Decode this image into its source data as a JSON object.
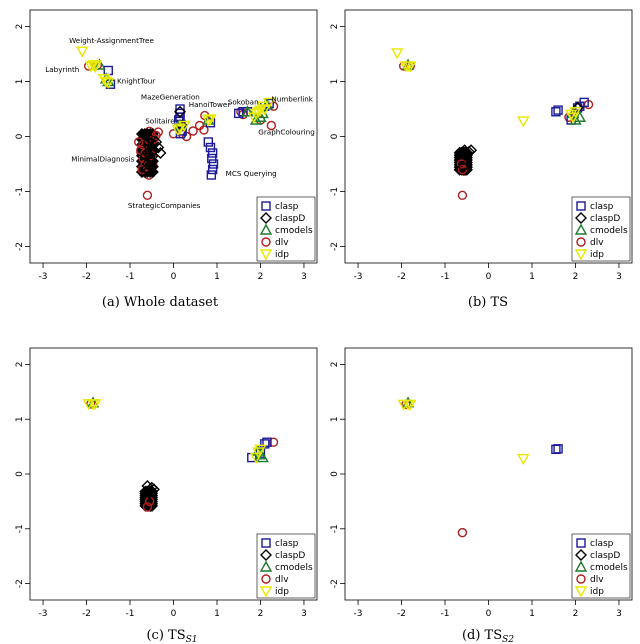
{
  "legend": [
    {
      "name": "clasp",
      "marker": "square",
      "color": "#1a1a9a"
    },
    {
      "name": "claspD",
      "marker": "diamond",
      "color": "#000000"
    },
    {
      "name": "cmodels",
      "marker": "triangle",
      "color": "#1d7a2e"
    },
    {
      "name": "dlv",
      "marker": "circle",
      "color": "#b01e1e"
    },
    {
      "name": "idp",
      "marker": "triangle-down",
      "color": "#e8e800"
    }
  ],
  "chart_data": [
    {
      "type": "scatter",
      "title": "",
      "caption": "(a) Whole dataset",
      "xlim": [
        -3.3,
        3.3
      ],
      "ylim": [
        -2.3,
        2.3
      ],
      "xticks": [
        -3,
        -2,
        -1,
        0,
        1,
        2,
        3
      ],
      "yticks": [
        -2,
        -1,
        0,
        1,
        2
      ],
      "annotations": [
        {
          "text": "Weight-AssignmentTree",
          "x": -2.4,
          "y": 1.7
        },
        {
          "text": "Labyrinth",
          "x": -2.95,
          "y": 1.17
        },
        {
          "text": "KnightTour",
          "x": -1.3,
          "y": 0.96
        },
        {
          "text": "MazeGeneration",
          "x": -0.75,
          "y": 0.67
        },
        {
          "text": "HanoiTower",
          "x": 0.35,
          "y": 0.54
        },
        {
          "text": "Sokoban",
          "x": 1.25,
          "y": 0.58
        },
        {
          "text": "Numberlink",
          "x": 2.25,
          "y": 0.64
        },
        {
          "text": "Solitaire",
          "x": -0.65,
          "y": 0.24
        },
        {
          "text": "GraphColouring",
          "x": 1.95,
          "y": 0.04
        },
        {
          "text": "MinimalDiagnosis",
          "x": -2.35,
          "y": -0.45
        },
        {
          "text": "MCS Querying",
          "x": 1.2,
          "y": -0.72
        },
        {
          "text": "StrategicCompanies",
          "x": -1.05,
          "y": -1.3
        }
      ],
      "series": [
        {
          "name": "idp",
          "points": [
            [
              -2.1,
              1.55
            ],
            [
              -1.9,
              1.28
            ],
            [
              -1.85,
              1.3
            ],
            [
              -1.8,
              1.27
            ],
            [
              -1.78,
              1.3
            ],
            [
              -1.6,
              1.05
            ],
            [
              -1.55,
              1.0
            ],
            [
              -1.5,
              0.98
            ],
            [
              0.8,
              0.3
            ],
            [
              0.85,
              0.32
            ],
            [
              0.15,
              0.15
            ],
            [
              0.25,
              0.2
            ],
            [
              0.1,
              0.12
            ],
            [
              1.85,
              0.35
            ],
            [
              1.95,
              0.45
            ],
            [
              2.1,
              0.5
            ],
            [
              2.2,
              0.62
            ],
            [
              2.05,
              0.55
            ],
            [
              1.9,
              0.42
            ],
            [
              2.0,
              0.48
            ]
          ]
        },
        {
          "name": "dlv",
          "points": [
            [
              -1.95,
              1.28
            ],
            [
              -1.75,
              1.3
            ],
            [
              -0.6,
              -1.07
            ],
            [
              -0.7,
              -0.15
            ],
            [
              -0.75,
              -0.25
            ],
            [
              -0.8,
              -0.1
            ],
            [
              -0.65,
              -0.3
            ],
            [
              -0.55,
              -0.2
            ],
            [
              -0.7,
              -0.4
            ],
            [
              -0.65,
              -0.5
            ],
            [
              -0.6,
              -0.55
            ],
            [
              -0.72,
              -0.6
            ],
            [
              -0.5,
              -0.35
            ],
            [
              -0.45,
              -0.05
            ],
            [
              -0.4,
              0.02
            ],
            [
              -0.35,
              0.08
            ],
            [
              0.0,
              0.05
            ],
            [
              0.2,
              0.05
            ],
            [
              0.3,
              0.0
            ],
            [
              0.45,
              0.1
            ],
            [
              0.6,
              0.2
            ],
            [
              0.7,
              0.12
            ],
            [
              0.72,
              0.38
            ],
            [
              2.0,
              0.3
            ],
            [
              2.3,
              0.55
            ],
            [
              2.25,
              0.2
            ],
            [
              1.55,
              0.45
            ],
            [
              1.6,
              0.4
            ]
          ]
        },
        {
          "name": "clasp",
          "points": [
            [
              -1.5,
              1.2
            ],
            [
              -1.45,
              0.95
            ],
            [
              0.15,
              0.5
            ],
            [
              0.15,
              0.42
            ],
            [
              0.15,
              0.35
            ],
            [
              0.12,
              0.3
            ],
            [
              0.17,
              0.22
            ],
            [
              0.2,
              0.1
            ],
            [
              0.16,
              0.05
            ],
            [
              0.8,
              -0.1
            ],
            [
              0.85,
              -0.2
            ],
            [
              0.9,
              -0.3
            ],
            [
              0.88,
              -0.4
            ],
            [
              0.92,
              -0.5
            ],
            [
              0.9,
              -0.6
            ],
            [
              0.87,
              -0.7
            ],
            [
              0.85,
              0.25
            ],
            [
              1.5,
              0.42
            ],
            [
              1.6,
              0.45
            ],
            [
              1.7,
              0.45
            ],
            [
              2.1,
              0.55
            ],
            [
              2.2,
              0.6
            ]
          ]
        },
        {
          "name": "claspD",
          "points": [
            [
              -0.6,
              0.0
            ],
            [
              -0.58,
              -0.1
            ],
            [
              -0.55,
              -0.2
            ],
            [
              -0.6,
              -0.3
            ],
            [
              -0.65,
              -0.35
            ],
            [
              -0.55,
              -0.4
            ],
            [
              -0.5,
              -0.45
            ],
            [
              -0.6,
              -0.5
            ],
            [
              -0.62,
              -0.58
            ],
            [
              -0.58,
              -0.62
            ],
            [
              -0.4,
              -0.1
            ],
            [
              -0.35,
              -0.2
            ],
            [
              -0.3,
              -0.3
            ],
            [
              -0.45,
              -0.25
            ],
            [
              0.15,
              0.45
            ],
            [
              0.2,
              0.2
            ]
          ]
        },
        {
          "name": "cmodels",
          "points": [
            [
              -1.7,
              1.3
            ],
            [
              -1.55,
              1.05
            ],
            [
              -1.5,
              1.0
            ],
            [
              0.15,
              0.2
            ],
            [
              0.8,
              0.3
            ],
            [
              1.9,
              0.3
            ],
            [
              2.0,
              0.35
            ],
            [
              1.7,
              0.45
            ],
            [
              2.05,
              0.42
            ],
            [
              2.15,
              0.58
            ]
          ]
        }
      ],
      "clusters": [
        {
          "cx": -0.6,
          "cy": -0.3,
          "rx": 0.18,
          "ry": 0.45
        }
      ]
    },
    {
      "type": "scatter",
      "title": "",
      "caption": "(b) TS",
      "xlim": [
        -3.3,
        3.3
      ],
      "ylim": [
        -2.3,
        2.3
      ],
      "xticks": [
        -3,
        -2,
        -1,
        0,
        1,
        2,
        3
      ],
      "yticks": [
        -2,
        -1,
        0,
        1,
        2
      ],
      "annotations": [],
      "series": [
        {
          "name": "idp",
          "points": [
            [
              -2.1,
              1.52
            ],
            [
              -1.9,
              1.28
            ],
            [
              -1.85,
              1.28
            ],
            [
              -1.8,
              1.28
            ],
            [
              0.8,
              0.28
            ],
            [
              1.9,
              0.4
            ],
            [
              2.0,
              0.45
            ],
            [
              1.95,
              0.35
            ]
          ]
        },
        {
          "name": "dlv",
          "points": [
            [
              -1.95,
              1.28
            ],
            [
              -1.8,
              1.28
            ],
            [
              -0.6,
              -1.07
            ],
            [
              -0.6,
              -0.6
            ],
            [
              -0.62,
              -0.5
            ],
            [
              1.85,
              0.35
            ],
            [
              2.3,
              0.58
            ]
          ]
        },
        {
          "name": "clasp",
          "points": [
            [
              1.55,
              0.45
            ],
            [
              1.6,
              0.48
            ],
            [
              2.1,
              0.55
            ],
            [
              2.2,
              0.62
            ],
            [
              1.9,
              0.3
            ],
            [
              2.05,
              0.52
            ]
          ]
        },
        {
          "name": "claspD",
          "points": [
            [
              -0.55,
              -0.25
            ],
            [
              -0.45,
              -0.28
            ],
            [
              -0.4,
              -0.25
            ],
            [
              -0.6,
              -0.3
            ],
            [
              -0.58,
              -0.55
            ],
            [
              2.05,
              0.52
            ]
          ]
        },
        {
          "name": "cmodels",
          "points": [
            [
              -1.85,
              1.3
            ],
            [
              2.0,
              0.3
            ],
            [
              2.1,
              0.35
            ],
            [
              1.95,
              0.42
            ]
          ]
        }
      ],
      "clusters": [
        {
          "cx": -0.58,
          "cy": -0.45,
          "rx": 0.12,
          "ry": 0.2
        }
      ]
    },
    {
      "type": "scatter",
      "title": "",
      "caption": "(c) TS_S1",
      "xlim": [
        -3.3,
        3.3
      ],
      "ylim": [
        -2.3,
        2.3
      ],
      "xticks": [
        -3,
        -2,
        -1,
        0,
        1,
        2,
        3
      ],
      "yticks": [
        -2,
        -1,
        0,
        1,
        2
      ],
      "annotations": [],
      "series": [
        {
          "name": "idp",
          "points": [
            [
              -1.95,
              1.28
            ],
            [
              -1.85,
              1.28
            ],
            [
              -1.8,
              1.28
            ],
            [
              1.9,
              0.3
            ],
            [
              2.0,
              0.45
            ],
            [
              1.95,
              0.4
            ]
          ]
        },
        {
          "name": "dlv",
          "points": [
            [
              -1.9,
              1.28
            ],
            [
              -0.6,
              -0.6
            ],
            [
              -0.55,
              -0.5
            ],
            [
              2.3,
              0.58
            ]
          ]
        },
        {
          "name": "clasp",
          "points": [
            [
              1.8,
              0.3
            ],
            [
              2.1,
              0.55
            ],
            [
              2.15,
              0.58
            ],
            [
              2.0,
              0.38
            ]
          ]
        },
        {
          "name": "claspD",
          "points": [
            [
              -0.6,
              -0.22
            ],
            [
              -0.5,
              -0.25
            ],
            [
              -0.45,
              -0.28
            ],
            [
              -0.55,
              -0.35
            ]
          ]
        },
        {
          "name": "cmodels",
          "points": [
            [
              -1.85,
              1.3
            ],
            [
              2.05,
              0.3
            ],
            [
              2.0,
              0.35
            ],
            [
              1.95,
              0.42
            ]
          ]
        }
      ],
      "clusters": [
        {
          "cx": -0.57,
          "cy": -0.45,
          "rx": 0.11,
          "ry": 0.17
        }
      ]
    },
    {
      "type": "scatter",
      "title": "",
      "caption": "(d) TS_S2",
      "xlim": [
        -3.3,
        3.3
      ],
      "ylim": [
        -2.3,
        2.3
      ],
      "xticks": [
        -3,
        -2,
        -1,
        0,
        1,
        2,
        3
      ],
      "yticks": [
        -2,
        -1,
        0,
        1,
        2
      ],
      "annotations": [],
      "series": [
        {
          "name": "idp",
          "points": [
            [
              -1.95,
              1.27
            ],
            [
              -1.85,
              1.27
            ],
            [
              -1.8,
              1.27
            ],
            [
              0.8,
              0.28
            ]
          ]
        },
        {
          "name": "dlv",
          "points": [
            [
              -1.9,
              1.27
            ],
            [
              -0.6,
              -1.07
            ]
          ]
        },
        {
          "name": "clasp",
          "points": [
            [
              1.55,
              0.45
            ],
            [
              1.6,
              0.46
            ]
          ]
        },
        {
          "name": "claspD",
          "points": []
        },
        {
          "name": "cmodels",
          "points": [
            [
              -1.85,
              1.3
            ]
          ]
        }
      ],
      "clusters": []
    }
  ]
}
